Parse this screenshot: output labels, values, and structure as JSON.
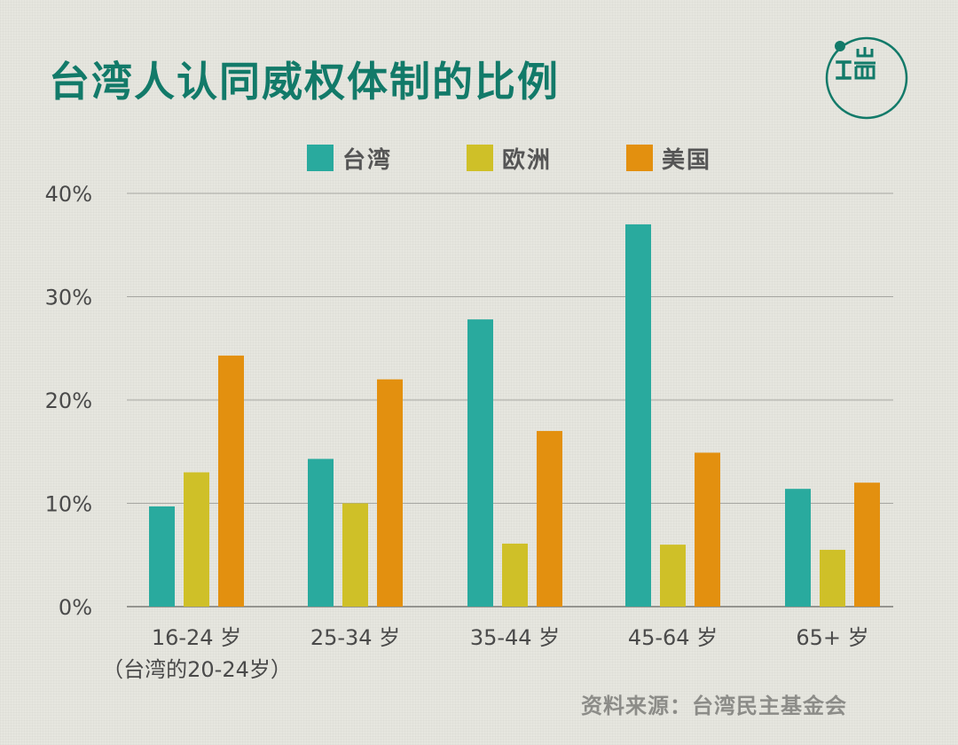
{
  "title": "台湾人认同威权体制的比例",
  "source": "资料来源：台湾民主基金会",
  "logo": {
    "icon": "brand-logo-icon",
    "color": "#127a69"
  },
  "chart_data": {
    "type": "bar",
    "title": "台湾人认同威权体制的比例",
    "categories": [
      "16-24 岁",
      "25-34 岁",
      "35-44 岁",
      "45-64 岁",
      "65+ 岁"
    ],
    "category_notes": [
      "（台湾的20-24岁）",
      "",
      "",
      "",
      ""
    ],
    "series": [
      {
        "name": "台湾",
        "color": "#29aa9e",
        "values": [
          9.7,
          14.3,
          27.8,
          37.0,
          11.4
        ]
      },
      {
        "name": "欧洲",
        "color": "#cfc028",
        "values": [
          13.0,
          10.0,
          6.1,
          6.0,
          5.5
        ]
      },
      {
        "name": "美国",
        "color": "#e3900f",
        "values": [
          24.3,
          22.0,
          17.0,
          14.9,
          12.0
        ]
      }
    ],
    "yticks": [
      "0%",
      "10%",
      "20%",
      "30%",
      "40%"
    ],
    "ytick_values": [
      0,
      10,
      20,
      30,
      40
    ],
    "ylim": [
      0,
      40
    ],
    "xlabel": "",
    "ylabel": "",
    "grid": true,
    "legend_position": "top"
  }
}
